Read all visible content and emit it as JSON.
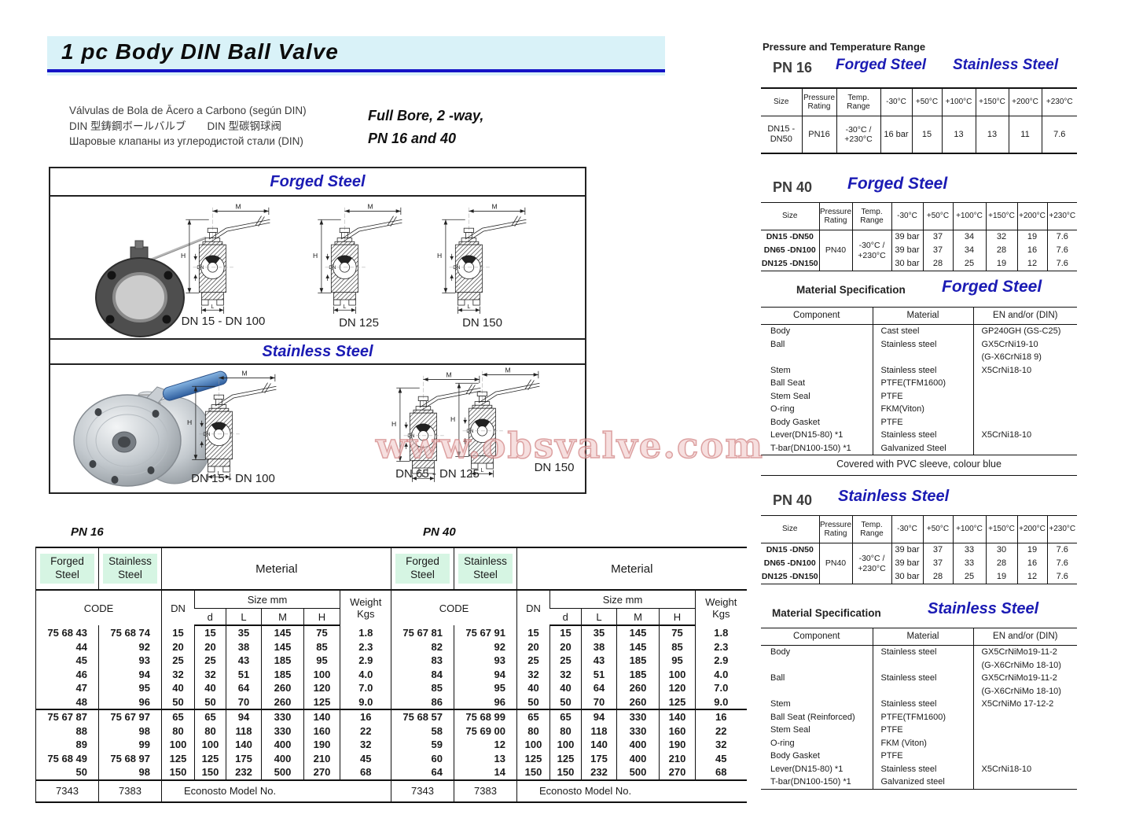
{
  "page": {
    "title": "1 pc Body DIN Ball Valve",
    "subtitle_lines": [
      "Válvulas de Bola de Ācero a Carbono (según DIN)",
      "DIN 型鋳鋼ボールバルブ　　DIN 型碳钢球阀",
      "Шаровые клапаны из углеродистой стали (DIN)"
    ],
    "tagline_line1": "Full Bore, 2 -way,",
    "tagline_line2": "PN 16 and 40",
    "watermark": "www.obsvalve.com",
    "colors": {
      "accent_blue": "#1b1bb4",
      "title_band": "#d9f2f8",
      "title_rule": "#1414c6",
      "green_cell": "#d6f5e3",
      "watermark_pink": "#cc7878"
    }
  },
  "drawings": {
    "forged": {
      "heading": "Forged Steel",
      "captions": [
        "DN 15 - DN 100",
        "DN 125",
        "DN 150"
      ]
    },
    "stainless": {
      "heading": "Stainless Steel",
      "captions": [
        "DN 15 - DN 100",
        "DN 65 - DN 125",
        "DN 150"
      ]
    },
    "dim_labels": {
      "m": "M",
      "h": "H",
      "dn": "DN",
      "l": "L"
    }
  },
  "pressure_temp": {
    "heading": "Pressure and Temperature Range",
    "pn16": {
      "label": "PN 16",
      "forged_heading": "Forged Steel",
      "stainless_heading": "Stainless Steel",
      "headers": [
        "Size",
        "Pressure\nRating",
        "Temp.\nRange",
        "-30°C",
        "+50°C",
        "+100°C",
        "+150°C",
        "+200°C",
        "+230°C"
      ],
      "row": [
        "DN15 -\nDN50",
        "PN16",
        "-30°C /\n+230°C",
        "16 bar",
        "15",
        "13",
        "13",
        "11",
        "7.6"
      ]
    },
    "pn40_forged": {
      "label": "PN 40",
      "heading": "Forged Steel",
      "headers": [
        "Size",
        "Pressure\nRating",
        "Temp.\nRange",
        "-30°C",
        "+50°C",
        "+100°C",
        "+150°C",
        "+200°C",
        "+230°C"
      ],
      "sizes": [
        "DN15 -DN50",
        "DN65 -DN100",
        "DN125 -DN150"
      ],
      "rating": "PN40",
      "temp": "-30°C /\n+230°C",
      "rows": [
        [
          "39 bar",
          "37",
          "34",
          "32",
          "19",
          "7.6"
        ],
        [
          "39 bar",
          "37",
          "34",
          "28",
          "16",
          "7.6"
        ],
        [
          "30 bar",
          "28",
          "25",
          "19",
          "12",
          "7.6"
        ]
      ]
    },
    "pn40_stainless": {
      "label": "PN 40",
      "heading": "Stainless Steel",
      "headers": [
        "Size",
        "Pressure\nRating",
        "Temp.\nRange",
        "-30°C",
        "+50°C",
        "+100°C",
        "+150°C",
        "+200°C",
        "+230°C"
      ],
      "sizes": [
        "DN15 -DN50",
        "DN65 -DN100",
        "DN125 -DN150"
      ],
      "rating": "PN40",
      "temp": "-30°C /\n+230°C",
      "rows": [
        [
          "39 bar",
          "37",
          "33",
          "30",
          "19",
          "7.6"
        ],
        [
          "39 bar",
          "37",
          "33",
          "28",
          "16",
          "7.6"
        ],
        [
          "30 bar",
          "28",
          "25",
          "19",
          "12",
          "7.6"
        ]
      ]
    }
  },
  "material_specs": {
    "forged": {
      "heading": "Material Specification",
      "steel": "Forged Steel",
      "headers": [
        "Component",
        "Material",
        "EN and/or (DIN)"
      ],
      "rows": [
        [
          "Body",
          "Cast steel",
          "GP240GH (GS-C25)"
        ],
        [
          "Ball",
          "Stainless steel",
          "GX5CrNi19-10"
        ],
        [
          "",
          "",
          "(G-X6CrNi18 9)"
        ],
        [
          "Stem",
          "Stainless steel",
          "X5CrNi18-10"
        ],
        [
          "Ball Seat",
          "PTFE(TFM1600)",
          ""
        ],
        [
          "Stem Seal",
          "PTFE",
          ""
        ],
        [
          "O-ring",
          "FKM(Viton)",
          ""
        ],
        [
          "Body Gasket",
          "PTFE",
          ""
        ],
        [
          "Lever(DN15-80) *1",
          "Stainless steel",
          "X5CrNi18-10"
        ],
        [
          "T-bar(DN100-150) *1",
          "Galvanized Steel",
          ""
        ]
      ],
      "footer": "Covered with PVC sleeve, colour blue"
    },
    "stainless": {
      "heading": "Material Specification",
      "steel": "Stainless Steel",
      "headers": [
        "Component",
        "Material",
        "EN and/or (DIN)"
      ],
      "rows": [
        [
          "Body",
          "Stainless steel",
          "GX5CrNiMo19-11-2"
        ],
        [
          "",
          "",
          "(G-X6CrNiMo 18-10)"
        ],
        [
          "Ball",
          "Stainless steel",
          "GX5CrNiMo19-11-2"
        ],
        [
          "",
          "",
          "(G-X6CrNiMo 18-10)"
        ],
        [
          "Stem",
          "Stainless steel",
          "X5CrNiMo 17-12-2"
        ],
        [
          "Ball Seat (Reinforced)",
          "PTFE(TFM1600)",
          ""
        ],
        [
          "Stem Seal",
          "PTFE",
          ""
        ],
        [
          "O-ring",
          "FKM (Viton)",
          ""
        ],
        [
          "Body Gasket",
          "PTFE",
          ""
        ],
        [
          "Lever(DN15-80) *1",
          "Stainless steel",
          "X5CrNi18-10"
        ],
        [
          "T-bar(DN100-150) *1",
          "Galvanized steel",
          ""
        ]
      ]
    }
  },
  "dim_tables": {
    "pn16": {
      "label": "PN 16",
      "forged": "Forged\nSteel",
      "stainless": "Stainless\nSteel",
      "material": "Meterial",
      "code": "CODE",
      "dn": "DN",
      "size": "Size mm",
      "d": "d",
      "l": "L",
      "m": "M",
      "h": "H",
      "weight": "Weight\nKgs",
      "group1": [
        [
          "75 68 43",
          "75 68 74",
          "15",
          "15",
          "35",
          "145",
          "75",
          "1.8"
        ],
        [
          "44",
          "92",
          "20",
          "20",
          "38",
          "145",
          "85",
          "2.3"
        ],
        [
          "45",
          "93",
          "25",
          "25",
          "43",
          "185",
          "95",
          "2.9"
        ],
        [
          "46",
          "94",
          "32",
          "32",
          "51",
          "185",
          "100",
          "4.0"
        ],
        [
          "47",
          "95",
          "40",
          "40",
          "64",
          "260",
          "120",
          "7.0"
        ],
        [
          "48",
          "96",
          "50",
          "50",
          "70",
          "260",
          "125",
          "9.0"
        ]
      ],
      "group2": [
        [
          "75 67 87",
          "75 67 97",
          "65",
          "65",
          "94",
          "330",
          "140",
          "16"
        ],
        [
          "88",
          "98",
          "80",
          "80",
          "118",
          "330",
          "160",
          "22"
        ],
        [
          "89",
          "99",
          "100",
          "100",
          "140",
          "400",
          "190",
          "32"
        ],
        [
          "75 68 49",
          "75 68 97",
          "125",
          "125",
          "175",
          "400",
          "210",
          "45"
        ],
        [
          "50",
          "98",
          "150",
          "150",
          "232",
          "500",
          "270",
          "68"
        ]
      ],
      "footer_forged": "7343",
      "footer_stainless": "7383",
      "footer_note": "Econosto Model No."
    },
    "pn40": {
      "label": "PN 40",
      "forged": "Forged\nSteel",
      "stainless": "Stainless\nSteel",
      "material": "Meterial",
      "code": "CODE",
      "dn": "DN",
      "size": "Size mm",
      "d": "d",
      "l": "L",
      "m": "M",
      "h": "H",
      "weight": "Weight\nKgs",
      "group1": [
        [
          "75 67 81",
          "75 67 91",
          "15",
          "15",
          "35",
          "145",
          "75",
          "1.8"
        ],
        [
          "82",
          "92",
          "20",
          "20",
          "38",
          "145",
          "85",
          "2.3"
        ],
        [
          "83",
          "93",
          "25",
          "25",
          "43",
          "185",
          "95",
          "2.9"
        ],
        [
          "84",
          "94",
          "32",
          "32",
          "51",
          "185",
          "100",
          "4.0"
        ],
        [
          "85",
          "95",
          "40",
          "40",
          "64",
          "260",
          "120",
          "7.0"
        ],
        [
          "86",
          "96",
          "50",
          "50",
          "70",
          "260",
          "125",
          "9.0"
        ]
      ],
      "group2": [
        [
          "75 68 57",
          "75 68 99",
          "65",
          "65",
          "94",
          "330",
          "140",
          "16"
        ],
        [
          "58",
          "75 69 00",
          "80",
          "80",
          "118",
          "330",
          "160",
          "22"
        ],
        [
          "59",
          "12",
          "100",
          "100",
          "140",
          "400",
          "190",
          "32"
        ],
        [
          "60",
          "13",
          "125",
          "125",
          "175",
          "400",
          "210",
          "45"
        ],
        [
          "64",
          "14",
          "150",
          "150",
          "232",
          "500",
          "270",
          "68"
        ]
      ],
      "footer_forged": "7343",
      "footer_stainless": "7383",
      "footer_note": "Econosto Model No."
    }
  }
}
